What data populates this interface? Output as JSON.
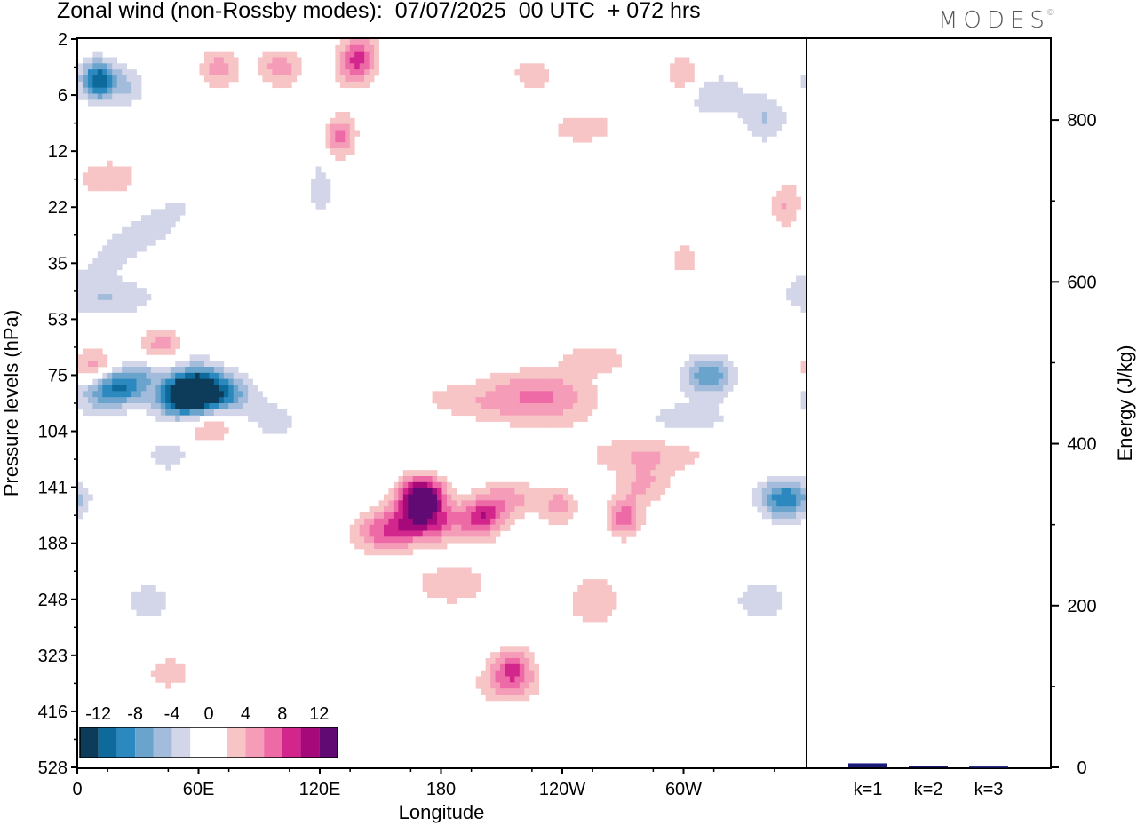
{
  "title": "Zonal wind (non-Rossby modes):  07/07/2025  00 UTC  + 072 hrs",
  "logo": "MODES",
  "logo_mark": "©",
  "chart_data": [
    {
      "type": "heatmap",
      "title": "Zonal wind (non-Rossby modes):  07/07/2025  00 UTC  + 072 hrs",
      "xlabel": "Longitude",
      "ylabel": "Pressure levels (hPa)",
      "x_ticks": [
        "0",
        "60E",
        "120E",
        "180",
        "120W",
        "60W"
      ],
      "y_ticks": [
        "2",
        "6",
        "12",
        "22",
        "35",
        "53",
        "75",
        "104",
        "141",
        "188",
        "248",
        "323",
        "416",
        "528"
      ],
      "colorbar": {
        "labels": [
          "-12",
          "-8",
          "-4",
          "0",
          "4",
          "8",
          "12"
        ],
        "colors": [
          "#0c3c5a",
          "#0d6a9b",
          "#2c89bf",
          "#6aa3cc",
          "#a4bcdb",
          "#d2d6e8",
          "#ffffff",
          "#ffffff",
          "#f7c5c5",
          "#f59cb8",
          "#ee6aa6",
          "#d3268c",
          "#a5097a",
          "#610a73"
        ]
      },
      "blobs": [
        {
          "x": 10,
          "y": 4.5,
          "v": -12,
          "sx": 6,
          "sy": 0.9,
          "r": 0
        },
        {
          "x": 25,
          "y": 5,
          "v": -4,
          "sx": 6,
          "sy": 1.2,
          "r": 0
        },
        {
          "x": 30,
          "y": 28,
          "v": -4,
          "sx": 22,
          "sy": 2.5,
          "r": -25
        },
        {
          "x": 14,
          "y": 45,
          "v": -4,
          "sx": 18,
          "sy": 1.6,
          "r": 0
        },
        {
          "x": 8,
          "y": 73,
          "v": 7,
          "sx": 8,
          "sy": 1.5,
          "r": 0
        },
        {
          "x": 42,
          "y": 63,
          "v": 6,
          "sx": 8,
          "sy": 1.4,
          "r": 0
        },
        {
          "x": 30,
          "y": 76,
          "v": -4,
          "sx": 22,
          "sy": 2.8,
          "r": -20
        },
        {
          "x": 16,
          "y": 80,
          "v": -9,
          "sx": 11,
          "sy": 3.2,
          "r": 0
        },
        {
          "x": 55,
          "y": 82,
          "v": -17,
          "sx": 10,
          "sy": 5.5,
          "r": -12
        },
        {
          "x": 62,
          "y": 88,
          "v": -7,
          "sx": 11,
          "sy": 4.5,
          "r": -8
        },
        {
          "x": 75,
          "y": 84,
          "v": -5,
          "sx": 10,
          "sy": 4,
          "r": 0
        },
        {
          "x": 97,
          "y": 98,
          "v": -3,
          "sx": 11,
          "sy": 7,
          "r": 0
        },
        {
          "x": 64,
          "y": 100,
          "v": 5,
          "sx": 10,
          "sy": 2.5,
          "r": 0
        },
        {
          "x": 45,
          "y": 118,
          "v": -3,
          "sx": 9,
          "sy": 3,
          "r": 0
        },
        {
          "x": 138,
          "y": 3,
          "v": 9,
          "sx": 6,
          "sy": 1.4,
          "r": 55
        },
        {
          "x": 130,
          "y": 10,
          "v": 7,
          "sx": 5,
          "sy": 2,
          "r": 35
        },
        {
          "x": 70,
          "y": 3.5,
          "v": 5,
          "sx": 7,
          "sy": 0.7,
          "r": 0
        },
        {
          "x": 100,
          "y": 3.5,
          "v": 5,
          "sx": 8,
          "sy": 0.8,
          "r": 0
        },
        {
          "x": 15,
          "y": 16,
          "v": 3,
          "sx": 14,
          "sy": 3,
          "r": 0
        },
        {
          "x": 120,
          "y": 18,
          "v": -3,
          "sx": 5,
          "sy": 5,
          "r": 0
        },
        {
          "x": 170,
          "y": 148,
          "v": 15,
          "sx": 8,
          "sy": 3.5,
          "r": 0
        },
        {
          "x": 170,
          "y": 170,
          "v": 9,
          "sx": 15,
          "sy": 7,
          "r": 0
        },
        {
          "x": 150,
          "y": 180,
          "v": 5,
          "sx": 10,
          "sy": 7,
          "r": 0
        },
        {
          "x": 185,
          "y": 230,
          "v": 4,
          "sx": 13,
          "sy": 10,
          "r": 0
        },
        {
          "x": 200,
          "y": 165,
          "v": 8,
          "sx": 7,
          "sy": 3.5,
          "r": 0
        },
        {
          "x": 213,
          "y": 150,
          "v": 5,
          "sx": 10,
          "sy": 5,
          "r": 0
        },
        {
          "x": 238,
          "y": 155,
          "v": 5,
          "sx": 6,
          "sy": 4,
          "r": 0
        },
        {
          "x": 270,
          "y": 165,
          "v": 7,
          "sx": 6,
          "sy": 3.5,
          "r": 0
        },
        {
          "x": 280,
          "y": 140,
          "v": 4,
          "sx": 9,
          "sy": 4,
          "r": 0
        },
        {
          "x": 210,
          "y": 90,
          "v": 4,
          "sx": 30,
          "sy": 1.8,
          "r": 5
        },
        {
          "x": 230,
          "y": 82,
          "v": 5,
          "sx": 18,
          "sy": 1.3,
          "r": 5
        },
        {
          "x": 255,
          "y": 68,
          "v": 3,
          "sx": 15,
          "sy": 1.8,
          "r": 0
        },
        {
          "x": 215,
          "y": 340,
          "v": 7,
          "sx": 7,
          "sy": 7,
          "r": 0
        },
        {
          "x": 212,
          "y": 370,
          "v": 4,
          "sx": 12,
          "sy": 12,
          "r": 0
        },
        {
          "x": 312,
          "y": 75,
          "v": -8,
          "sx": 9,
          "sy": 2,
          "r": 0
        },
        {
          "x": 300,
          "y": 97,
          "v": -3,
          "sx": 20,
          "sy": 2,
          "r": 0
        },
        {
          "x": 282,
          "y": 118,
          "v": 4,
          "sx": 22,
          "sy": 3,
          "r": 0
        },
        {
          "x": 350,
          "y": 150,
          "v": -10,
          "sx": 9,
          "sy": 8,
          "r": 0
        },
        {
          "x": 338,
          "y": 250,
          "v": -4,
          "sx": 9,
          "sy": 15,
          "r": 0
        },
        {
          "x": 315,
          "y": 6,
          "v": -4,
          "sx": 10,
          "sy": 1.3,
          "r": 0
        },
        {
          "x": 340,
          "y": 8,
          "v": -4,
          "sx": 8,
          "sy": 2,
          "r": 0
        },
        {
          "x": 300,
          "y": 4,
          "v": 4,
          "sx": 7,
          "sy": 1,
          "r": 0
        },
        {
          "x": 350,
          "y": 22,
          "v": 4,
          "sx": 5,
          "sy": 3,
          "r": 0
        },
        {
          "x": 250,
          "y": 9,
          "v": 3,
          "sx": 14,
          "sy": 1.0,
          "r": 0
        },
        {
          "x": 225,
          "y": 4,
          "v": 3,
          "sx": 9,
          "sy": 0.8,
          "r": 0
        },
        {
          "x": 45,
          "y": 350,
          "v": 3,
          "sx": 9,
          "sy": 10,
          "r": 0
        },
        {
          "x": 35,
          "y": 250,
          "v": -3,
          "sx": 10,
          "sy": 20,
          "r": 0
        },
        {
          "x": 255,
          "y": 250,
          "v": 3,
          "sx": 12,
          "sy": 30,
          "r": 0
        },
        {
          "x": 300,
          "y": 34,
          "v": 2.6,
          "sx": 6,
          "sy": 5,
          "r": 0
        }
      ]
    },
    {
      "type": "bar",
      "ylabel": "Energy (J/kg)",
      "categories": [
        "k=1",
        "k=2",
        "k=3"
      ],
      "values": [
        5,
        1.5,
        1
      ],
      "ylim": [
        0,
        900
      ],
      "y_ticks": [
        "0",
        "200",
        "400",
        "600",
        "800"
      ],
      "bar_color": "#1a1a7a"
    }
  ]
}
